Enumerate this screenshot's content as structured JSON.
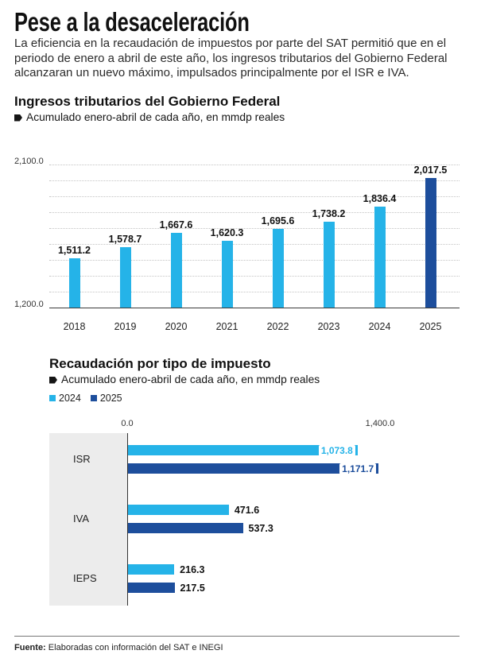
{
  "header": {
    "title": "Pese a la desaceleración",
    "lead_lines": [
      "La eficiencia en la recaudación de impuestos por parte del SAT permitió que en el",
      "periodo de enero a abril de este año, los ingresos tributarios del Gobierno Federal",
      "alcanzaran un nuevo máximo, impulsados principalmente por el ISR e IVA."
    ]
  },
  "icons": {
    "subtitle_marker": "tag-icon"
  },
  "colors": {
    "text": "#1a1a1a",
    "light_blue": "#25b3e8",
    "dark_blue": "#1d4e9c",
    "category_panel": "#ececec"
  },
  "chart_data": [
    {
      "type": "bar",
      "title": "Ingresos tributarios del Gobierno Federal",
      "subtitle": "Acumulado enero-abril de cada año, en mmdp reales",
      "categories": [
        "2018",
        "2019",
        "2020",
        "2021",
        "2022",
        "2023",
        "2024",
        "2025"
      ],
      "values": [
        1511.2,
        1578.7,
        1667.6,
        1620.3,
        1695.6,
        1738.2,
        1836.4,
        2017.5
      ],
      "value_labels": [
        "1,511.2",
        "1,578.7",
        "1,667.6",
        "1,620.3",
        "1,695.6",
        "1,738.2",
        "1,836.4",
        "2,017.5"
      ],
      "bar_colors": [
        "#25b3e8",
        "#25b3e8",
        "#25b3e8",
        "#25b3e8",
        "#25b3e8",
        "#25b3e8",
        "#25b3e8",
        "#1d4e9c"
      ],
      "ylim": [
        1200,
        2100
      ],
      "yticks": [
        {
          "value": 2100,
          "label": "2,100.0"
        },
        {
          "value": 1200,
          "label": "1,200.0"
        }
      ],
      "grid": true
    },
    {
      "type": "bar",
      "orientation": "horizontal",
      "title": "Recaudación por tipo de impuesto",
      "subtitle": "Acumulado enero-abril de cada año, en mmdp reales",
      "categories": [
        "ISR",
        "IVA",
        "IEPS"
      ],
      "series": [
        {
          "name": "2024",
          "values": [
            1073.8,
            471.6,
            216.3
          ],
          "labels": [
            "1,073.8",
            "471.6",
            "216.3"
          ],
          "color": "#25b3e8"
        },
        {
          "name": "2025",
          "values": [
            1171.7,
            537.3,
            217.5
          ],
          "labels": [
            "1,171.7",
            "537.3",
            "217.5"
          ],
          "color": "#1d4e9c"
        }
      ],
      "xlim": [
        0,
        1400
      ],
      "xtick_labels": [
        "0.0",
        "1,400.0"
      ],
      "legend": "top-left"
    }
  ],
  "footer": {
    "source_label": "Fuente:",
    "source_text": "Elaboradas con información del SAT e INEGI"
  }
}
